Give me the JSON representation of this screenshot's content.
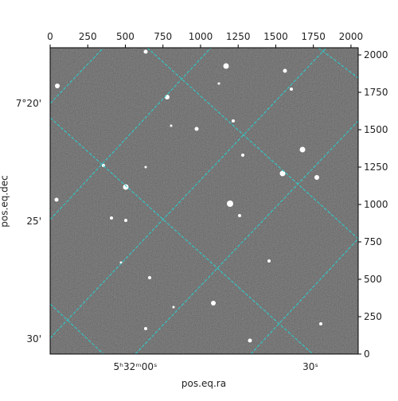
{
  "chart_data": {
    "type": "image",
    "xlabel": "pos.eq.ra",
    "ylabel": "pos.eq.dec",
    "xlim": [
      0,
      2048
    ],
    "xticks": [
      0,
      250,
      500,
      750,
      1000,
      1250,
      1500,
      1750,
      2000
    ],
    "ylim": [
      0,
      2048
    ],
    "yticks": [
      0,
      250,
      500,
      750,
      1000,
      1250,
      1500,
      1750,
      2000
    ],
    "ra_ticks": [
      "5ʰ32ᵐ00ˢ",
      "30ˢ"
    ],
    "dec_ticks": [
      "7°20'",
      "25'",
      "30'"
    ],
    "grid_color": "#2ad0d0"
  }
}
